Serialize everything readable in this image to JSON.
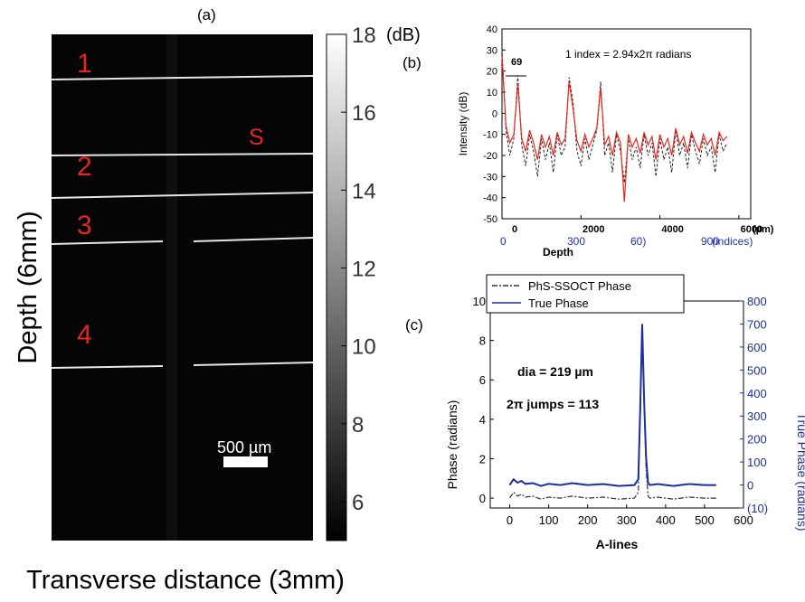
{
  "panel_a": {
    "label": "(a)",
    "ylabel": "Depth (6mm)",
    "xlabel": "Transverse distance (3mm)",
    "layer_labels": [
      "1",
      "2",
      "3",
      "4"
    ],
    "sample_label": "S",
    "scale_bar": "500 µm",
    "colorbar": {
      "unit": "(dB)",
      "ticks": [
        "18",
        "16",
        "14",
        "12",
        "10",
        "8",
        "6"
      ],
      "min": 5,
      "max": 18
    }
  },
  "chart_data": [
    {
      "type": "line",
      "panel": "(b)",
      "xlabel": "Depth",
      "ylabel": "Intensity (dB)",
      "x_unit": "(µm)",
      "x_ticks": [
        "0",
        "2000",
        "4000",
        "6000"
      ],
      "x2_ticks": [
        "0",
        "300",
        "60)",
        "900"
      ],
      "x2_label": "(indices)",
      "ylim": [
        -50,
        40
      ],
      "y_ticks": [
        "40",
        "30",
        "20",
        "10",
        "0",
        "-10",
        "-20",
        "-30",
        "-40",
        "-50"
      ],
      "xlim": [
        0,
        6300
      ],
      "annotation": "1 index = 2.94x2π radians",
      "arrow_label": "69",
      "series": [
        {
          "color": "#222222",
          "style": "dash",
          "x": [
            0,
            100,
            200,
            300,
            400,
            500,
            600,
            700,
            800,
            900,
            1000,
            1100,
            1200,
            1300,
            1400,
            1500,
            1600,
            1700,
            1800,
            1900,
            2000,
            2100,
            2200,
            2300,
            2400,
            2500,
            2600,
            2700,
            2800,
            2900,
            3000,
            3100,
            3200,
            3300,
            3400,
            3500,
            3600,
            3700,
            3800,
            3900,
            4000,
            4100,
            4200,
            4300,
            4400,
            4500,
            4600,
            4700,
            4800,
            4900,
            5000,
            5100,
            5200,
            5300,
            5400,
            5500,
            5600,
            5700
          ],
          "y": [
            30,
            -8,
            -20,
            -12,
            18,
            -15,
            -25,
            -10,
            -18,
            -30,
            -12,
            -22,
            -14,
            -28,
            -10,
            -20,
            -16,
            17,
            5,
            -18,
            -25,
            -12,
            -22,
            -15,
            -8,
            15,
            -20,
            -14,
            -28,
            -10,
            -18,
            -33,
            -12,
            -22,
            -16,
            -26,
            -10,
            -20,
            -14,
            -30,
            -12,
            -22,
            -16,
            -28,
            -8,
            -20,
            -14,
            -26,
            -10,
            -18,
            -24,
            -12,
            -20,
            -16,
            -28,
            -10,
            -18,
            -14
          ]
        },
        {
          "color": "#e8251d",
          "style": "solid",
          "x": [
            0,
            100,
            200,
            300,
            400,
            500,
            600,
            700,
            800,
            900,
            1000,
            1100,
            1200,
            1300,
            1400,
            1500,
            1600,
            1700,
            1800,
            1900,
            2000,
            2100,
            2200,
            2300,
            2400,
            2500,
            2600,
            2700,
            2800,
            2900,
            3000,
            3100,
            3200,
            3300,
            3400,
            3500,
            3600,
            3700,
            3800,
            3900,
            4000,
            4100,
            4200,
            4300,
            4400,
            4500,
            4600,
            4700,
            4800,
            4900,
            5000,
            5100,
            5200,
            5300,
            5400,
            5500,
            5600,
            5700
          ],
          "y": [
            27,
            -6,
            -14,
            -10,
            14,
            -12,
            -18,
            -8,
            -14,
            -22,
            -10,
            -16,
            -11,
            -20,
            -9,
            -15,
            -12,
            15,
            2,
            -13,
            -18,
            -10,
            -16,
            -12,
            -7,
            12,
            -15,
            -11,
            -20,
            -9,
            -14,
            -42,
            -10,
            -16,
            -12,
            -19,
            -9,
            -15,
            -11,
            -22,
            -10,
            -16,
            -12,
            -20,
            -7,
            -15,
            -11,
            -19,
            -9,
            -14,
            -18,
            -10,
            -15,
            -12,
            -20,
            -9,
            -13,
            -11
          ]
        }
      ]
    },
    {
      "type": "line",
      "panel": "(c)",
      "xlabel": "A-lines",
      "ylabel": "Phase (radians)",
      "y2label": "True Phase (radians)",
      "xlim": [
        -50,
        600
      ],
      "ylim": [
        -0.5,
        10
      ],
      "y2lim": [
        -100,
        800
      ],
      "x_ticks": [
        "0",
        "100",
        "200",
        "300",
        "400",
        "500",
        "600"
      ],
      "y_ticks": [
        "0",
        "2",
        "4",
        "6",
        "8",
        "10"
      ],
      "y2_ticks": [
        "(10)",
        "0",
        "100",
        "200",
        "300",
        "400",
        "500",
        "600",
        "700",
        "800"
      ],
      "annotations": [
        "dia = 219 µm",
        "2π jumps = 113"
      ],
      "series": [
        {
          "name": "PhS-SSOCT Phase",
          "color": "#333333",
          "style": "dashdot",
          "x": [
            0,
            10,
            20,
            30,
            40,
            60,
            80,
            100,
            130,
            160,
            200,
            240,
            280,
            320,
            330,
            335,
            340,
            345,
            350,
            355,
            360,
            380,
            420,
            460,
            500,
            530
          ],
          "y": [
            0,
            0.3,
            0.1,
            0.2,
            0.05,
            0.1,
            -0.05,
            0.05,
            0,
            0.1,
            0,
            0.05,
            -0.05,
            0,
            0.3,
            4.0,
            8.8,
            4.5,
            1.5,
            0.1,
            0,
            0.05,
            -0.05,
            0.05,
            0,
            0
          ]
        },
        {
          "name": "True Phase",
          "color": "#1c2f9c",
          "style": "solid",
          "axis": "right",
          "x": [
            0,
            10,
            20,
            30,
            40,
            60,
            80,
            100,
            130,
            160,
            200,
            240,
            280,
            320,
            330,
            335,
            340,
            345,
            350,
            355,
            360,
            380,
            420,
            460,
            500,
            530
          ],
          "y": [
            0,
            25,
            10,
            18,
            5,
            8,
            -4,
            5,
            0,
            8,
            0,
            4,
            -4,
            0,
            25,
            330,
            700,
            360,
            120,
            8,
            0,
            4,
            -4,
            4,
            0,
            0
          ]
        }
      ]
    }
  ]
}
